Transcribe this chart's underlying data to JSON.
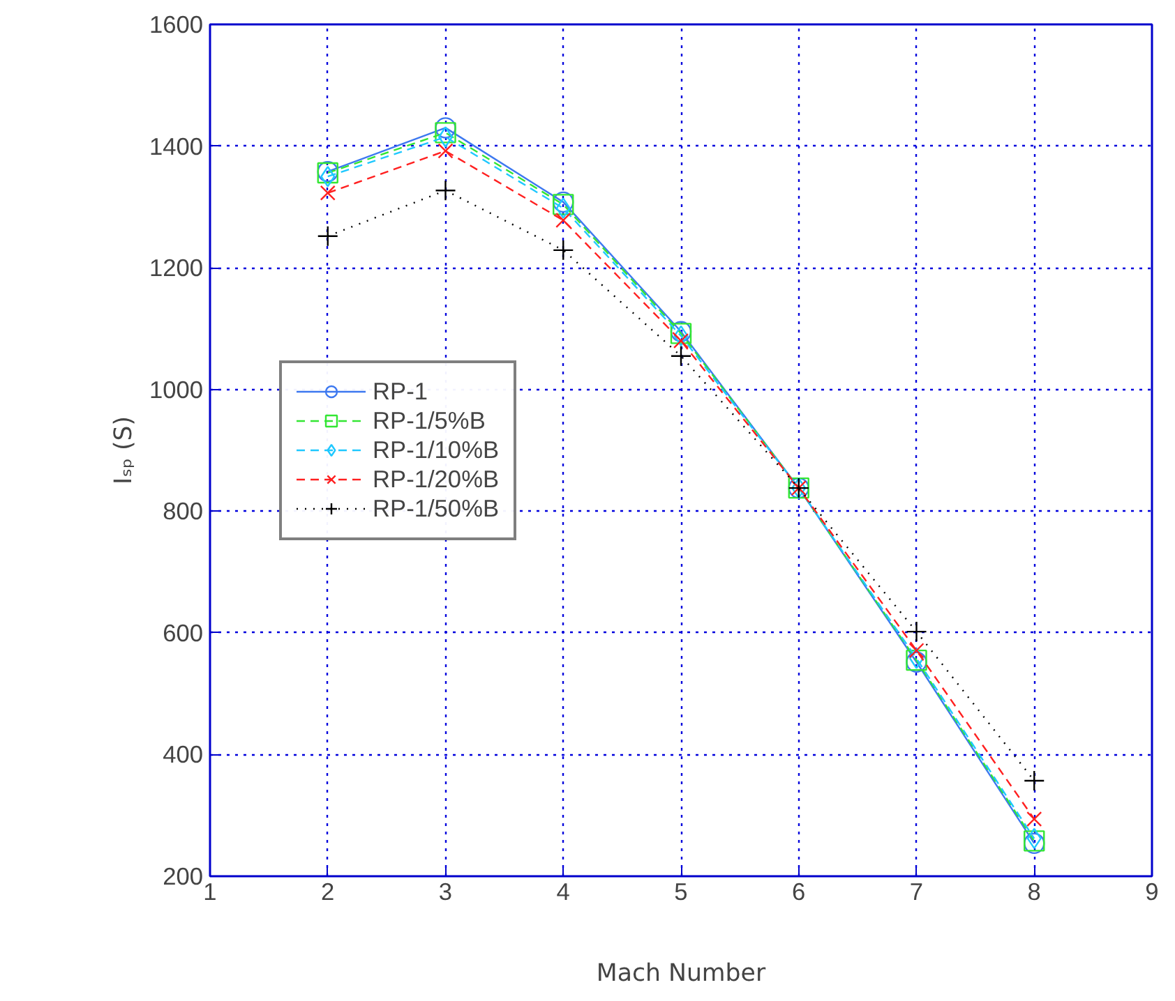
{
  "chart_data": {
    "type": "line",
    "xlabel": "Mach Number",
    "ylabel": "Iₛₚ (S)",
    "x": [
      2,
      3,
      4,
      5,
      6,
      7,
      8
    ],
    "xlim": [
      1,
      9
    ],
    "xticks": [
      1,
      2,
      3,
      4,
      5,
      6,
      7,
      8,
      9
    ],
    "ylim": [
      200,
      1600
    ],
    "yticks": [
      200,
      400,
      600,
      800,
      1000,
      1200,
      1400,
      1600
    ],
    "grid": true,
    "legend": "left",
    "series": [
      {
        "name": "RP-1",
        "color": "#3c78f0",
        "marker": "circle",
        "line_style": "solid",
        "values": [
          1358,
          1430,
          1308,
          1095,
          838,
          552,
          254
        ]
      },
      {
        "name": "RP-1/5%B",
        "color": "#33e633",
        "marker": "square",
        "line_style": "dashed",
        "values": [
          1356,
          1422,
          1304,
          1092,
          838,
          555,
          258
        ]
      },
      {
        "name": "RP-1/10%B",
        "color": "#1ec8ff",
        "marker": "diamond",
        "line_style": "dashed",
        "values": [
          1350,
          1415,
          1298,
          1088,
          838,
          558,
          262
        ]
      },
      {
        "name": "RP-1/20%B",
        "color": "#ff2020",
        "marker": "cross",
        "line_style": "dashed",
        "values": [
          1323,
          1392,
          1278,
          1080,
          838,
          571,
          294
        ]
      },
      {
        "name": "RP-1/50%B",
        "color": "#000000",
        "marker": "plus",
        "line_style": "dotted",
        "values": [
          1252,
          1327,
          1229,
          1055,
          838,
          602,
          357
        ]
      }
    ]
  }
}
